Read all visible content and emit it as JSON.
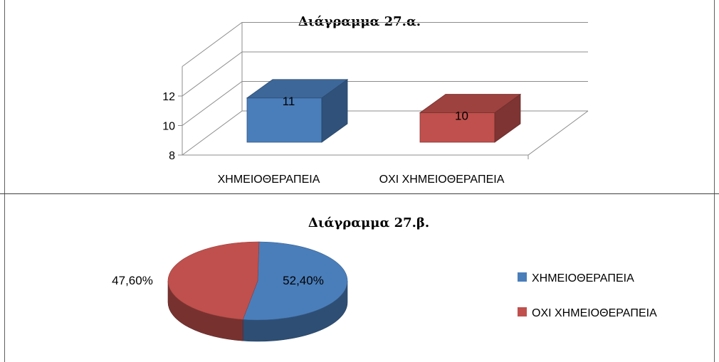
{
  "chart_data": [
    {
      "type": "bar",
      "title": "Διάγραμμα 27.α.",
      "categories": [
        "ΧΗΜΕΙΟΘΕΡΑΠΕΙΑ",
        "ΟΧΙ ΧΗΜΕΙΟΘΕΡΑΠΕΙΑ"
      ],
      "values": [
        11,
        10
      ],
      "data_labels": [
        "11",
        "10"
      ],
      "ylim": [
        8,
        12
      ],
      "yticks": [
        "8",
        "10",
        "12"
      ],
      "grid": true,
      "colors": [
        "#4a7ebb",
        "#c0504d"
      ]
    },
    {
      "type": "pie",
      "title": "Διάγραμμα 27.β.",
      "labels": [
        "ΧΗΜΕΙΟΘΕΡΑΠΕΙΑ",
        "ΟΧΙ ΧΗΜΕΙΟΘΕΡΑΠΕΙΑ"
      ],
      "values": [
        52.4,
        47.6
      ],
      "data_labels": [
        "52,40%",
        "47,60%"
      ],
      "legend": "right",
      "colors": [
        "#4a7ebb",
        "#c0504d"
      ]
    }
  ]
}
